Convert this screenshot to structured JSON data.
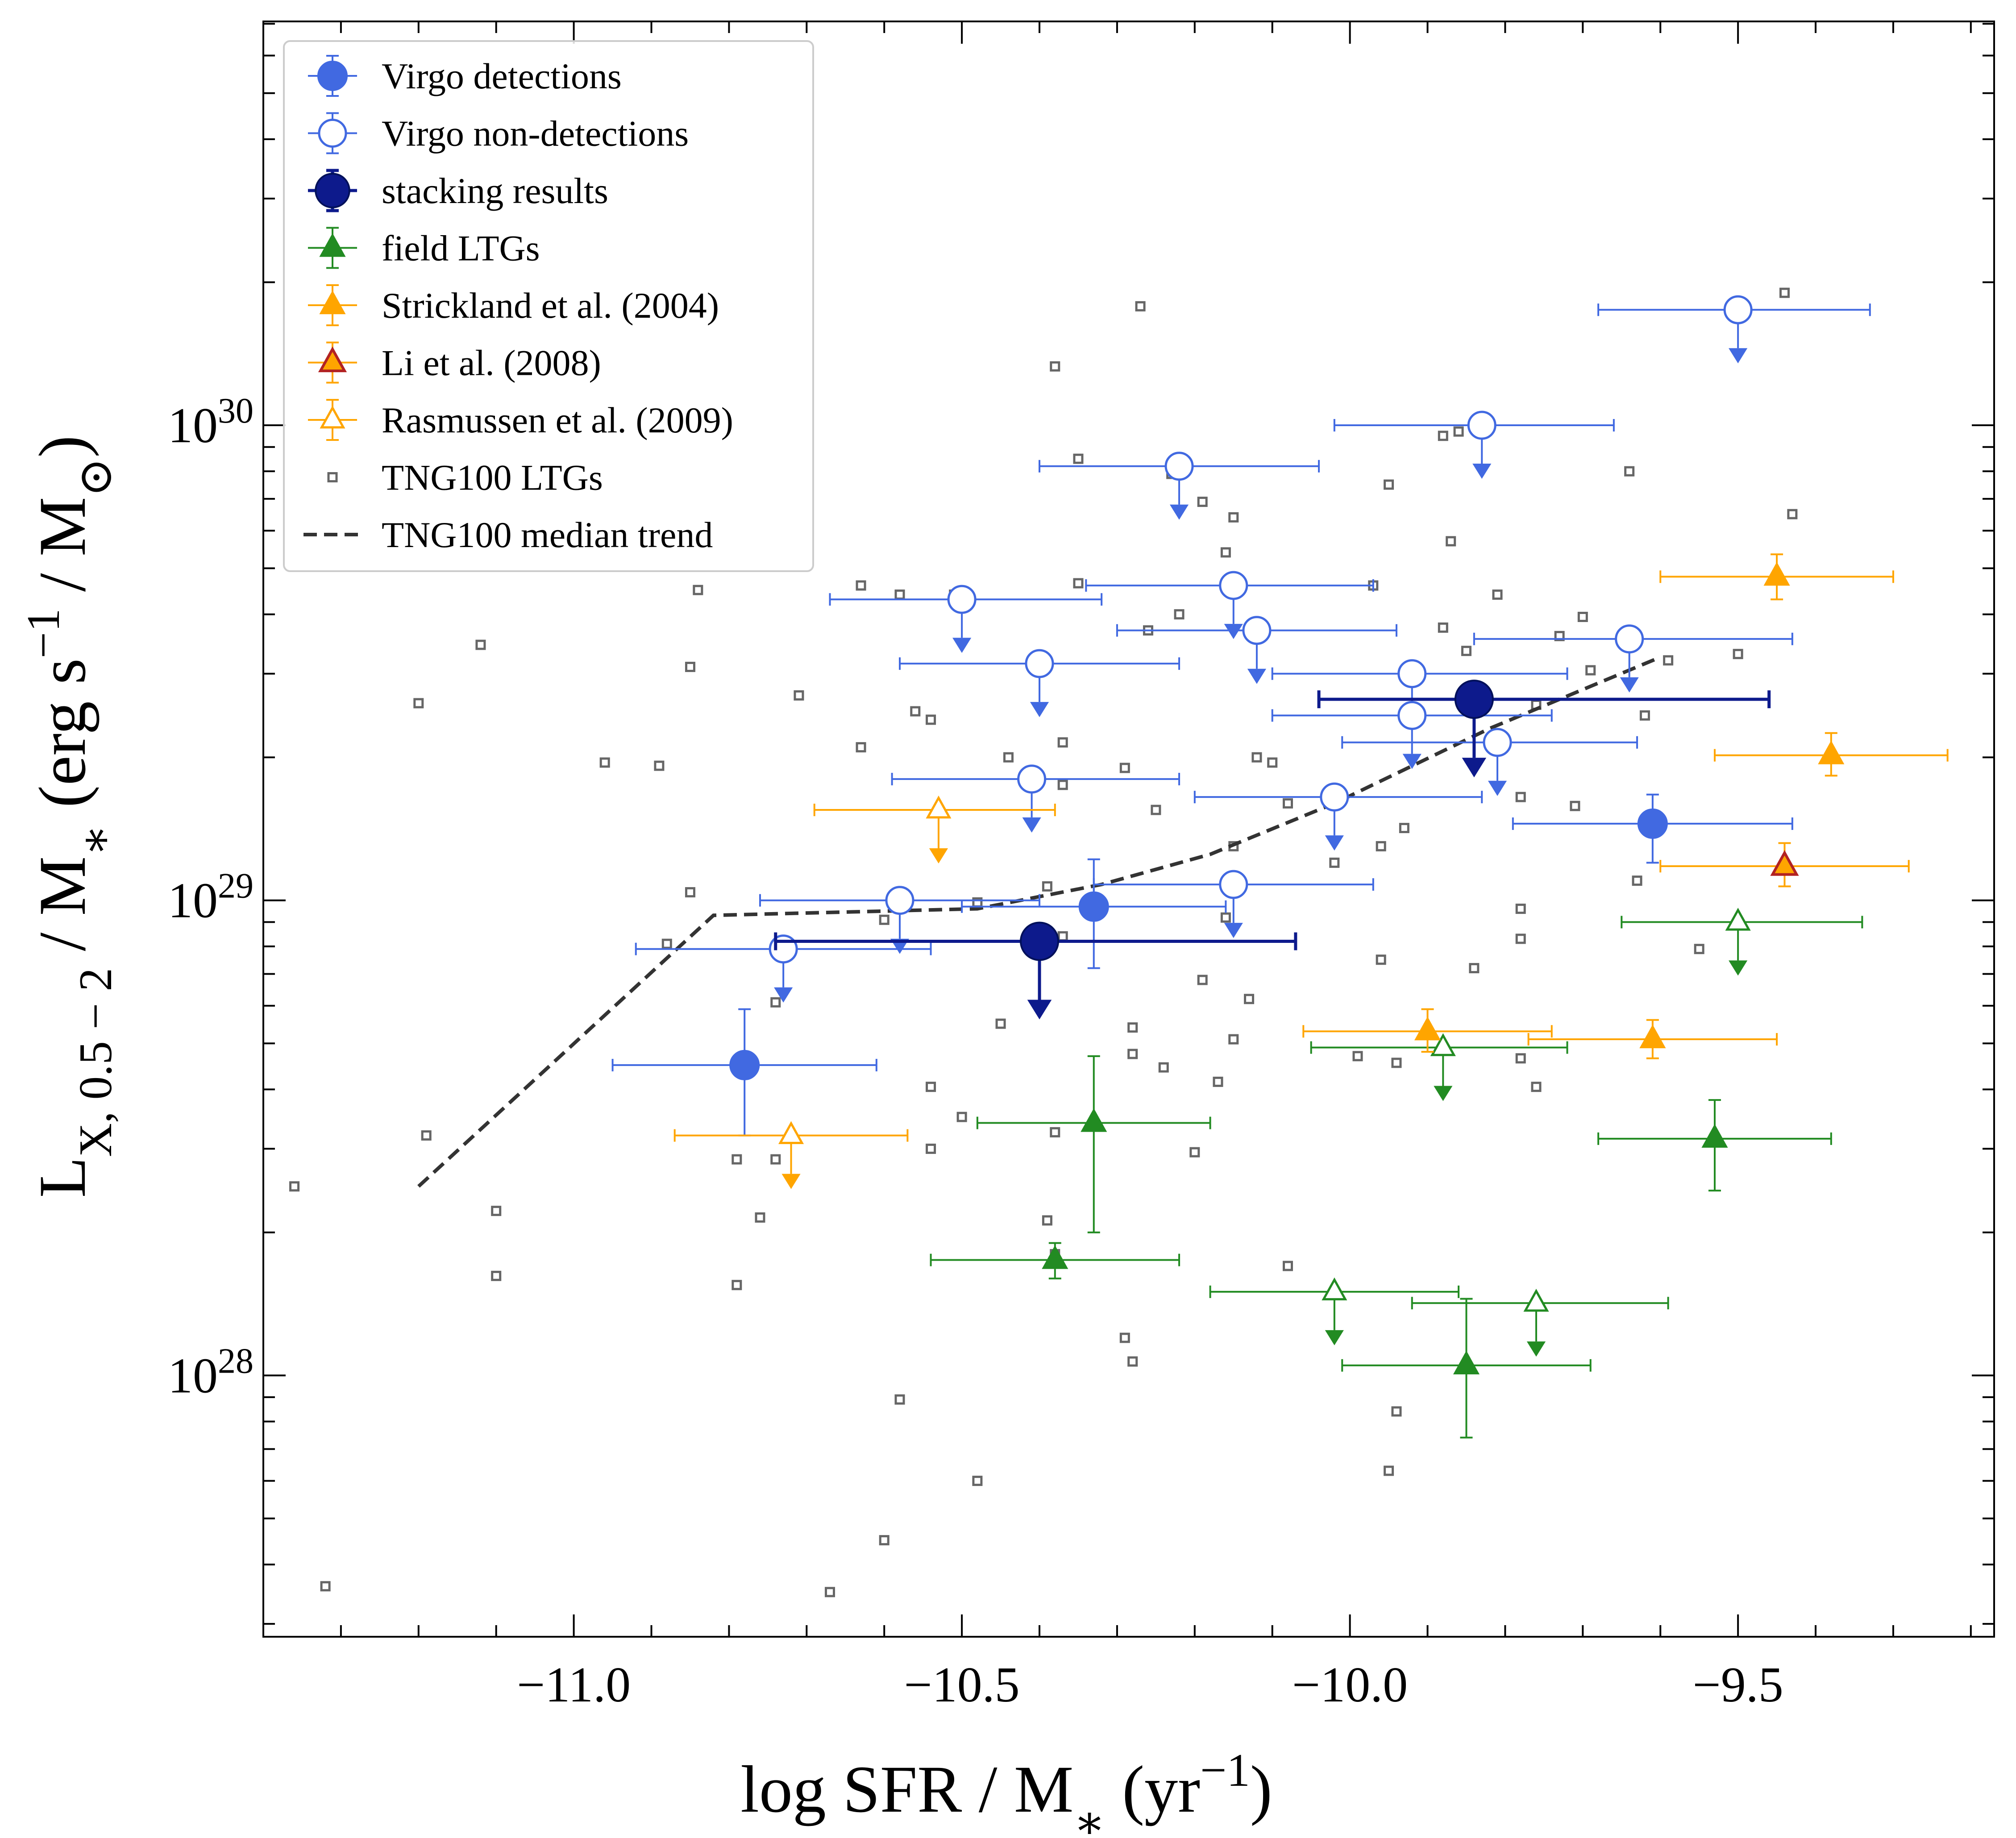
{
  "colors": {
    "virgo": "#4169e1",
    "stack": "#0d1a8c",
    "field": "#228b22",
    "strickland": "#ffa500",
    "li_edge": "#b22222",
    "tng": "#666666",
    "median": "#333333"
  },
  "chart_data": {
    "type": "scatter",
    "xlabel": "log SFR / M_* (yr^-1)",
    "ylabel": "L_X,0.5-2 / M_* (erg s^-1 / M_sun)",
    "xlim": [
      -11.4,
      -9.17
    ],
    "ylim_log10": [
      27.45,
      30.85
    ],
    "x_ticks": [
      -11.0,
      -10.5,
      -10.0,
      -9.5
    ],
    "x_tick_labels": [
      "−11.0",
      "−10.5",
      "−10.0",
      "−9.5"
    ],
    "y_ticks_log10": [
      28,
      29,
      30
    ],
    "y_tick_labels": [
      "10",
      "10",
      "10"
    ],
    "y_tick_exponents": [
      "28",
      "29",
      "30"
    ],
    "series": [
      {
        "name": "Virgo detections",
        "style": "virgo_det",
        "points": [
          {
            "x": -10.78,
            "y": 4.5e+28,
            "xerr": 0.17,
            "yhi": 5.9e+28,
            "ylo": 3.2e+28
          },
          {
            "x": -10.33,
            "y": 9.7e+28,
            "xerr": 0.17,
            "yhi": 1.22e+29,
            "ylo": 7.2e+28
          },
          {
            "x": -9.61,
            "y": 1.45e+29,
            "xerr": 0.18,
            "yhi": 1.67e+29,
            "ylo": 1.2e+29
          }
        ]
      },
      {
        "name": "Virgo non-detections",
        "style": "virgo_ul",
        "points": [
          {
            "x": -9.5,
            "y": 1.75e+30,
            "xlo": -9.68,
            "xhi": -9.33
          },
          {
            "x": -9.83,
            "y": 1e+30,
            "xlo": -10.02,
            "xhi": -9.66
          },
          {
            "x": -10.22,
            "y": 8.2e+29,
            "xlo": -10.4,
            "xhi": -10.04
          },
          {
            "x": -10.5,
            "y": 4.3e+29,
            "xlo": -10.67,
            "xhi": -10.32
          },
          {
            "x": -10.15,
            "y": 4.6e+29,
            "xlo": -10.34,
            "xhi": -9.97
          },
          {
            "x": -10.12,
            "y": 3.7e+29,
            "xlo": -10.3,
            "xhi": -9.94
          },
          {
            "x": -10.4,
            "y": 3.15e+29,
            "xlo": -10.58,
            "xhi": -10.22
          },
          {
            "x": -9.92,
            "y": 3e+29,
            "xlo": -10.1,
            "xhi": -9.72
          },
          {
            "x": -9.64,
            "y": 3.55e+29,
            "xlo": -9.84,
            "xhi": -9.43
          },
          {
            "x": -9.92,
            "y": 2.45e+29,
            "xlo": -10.1,
            "xhi": -9.74
          },
          {
            "x": -9.81,
            "y": 2.15e+29,
            "xlo": -10.01,
            "xhi": -9.63
          },
          {
            "x": -10.41,
            "y": 1.8e+29,
            "xlo": -10.59,
            "xhi": -10.22
          },
          {
            "x": -10.02,
            "y": 1.65e+29,
            "xlo": -10.2,
            "xhi": -9.83
          },
          {
            "x": -10.15,
            "y": 1.08e+29,
            "xlo": -10.33,
            "xhi": -9.97
          },
          {
            "x": -10.58,
            "y": 1e+29,
            "xlo": -10.76,
            "xhi": -10.4
          },
          {
            "x": -10.73,
            "y": 7.9e+28,
            "xlo": -10.92,
            "xhi": -10.54
          }
        ]
      },
      {
        "name": "stacking results",
        "style": "stack_ul",
        "points": [
          {
            "x": -9.84,
            "y": 2.65e+29,
            "xlo": -10.04,
            "xhi": -9.46
          },
          {
            "x": -10.4,
            "y": 8.2e+28,
            "xlo": -10.74,
            "xhi": -10.07
          }
        ]
      },
      {
        "name": "field LTGs",
        "style": "field_det",
        "points": [
          {
            "x": -10.33,
            "y": 3.4e+28,
            "xerr": 0.15,
            "yhi": 4.7e+28,
            "ylo": 2e+28
          },
          {
            "x": -9.53,
            "y": 3.15e+28,
            "xerr": 0.15,
            "yhi": 3.8e+28,
            "ylo": 2.45e+28
          },
          {
            "x": -10.38,
            "y": 1.75e+28,
            "xerr": 0.16,
            "yhi": 1.9e+28,
            "ylo": 1.6e+28
          },
          {
            "x": -9.85,
            "y": 1.05e+28,
            "xerr": 0.16,
            "yhi": 1.45e+28,
            "ylo": 7.4e+27
          }
        ]
      },
      {
        "name": "field LTGs (upper limits)",
        "style": "field_ul",
        "points": [
          {
            "x": -9.5,
            "y": 9e+28,
            "xlo": -9.65,
            "xhi": -9.34
          },
          {
            "x": -9.88,
            "y": 4.9e+28,
            "xlo": -10.05,
            "xhi": -9.72
          },
          {
            "x": -10.02,
            "y": 1.5e+28,
            "xlo": -10.18,
            "xhi": -9.86
          },
          {
            "x": -9.76,
            "y": 1.42e+28,
            "xlo": -9.92,
            "xhi": -9.59
          }
        ]
      },
      {
        "name": "Strickland et al. (2004)",
        "style": "strickland",
        "points": [
          {
            "x": -9.45,
            "y": 4.8e+29,
            "xerr": 0.15,
            "yhi": 5.35e+29,
            "ylo": 4.3e+29
          },
          {
            "x": -9.38,
            "y": 2.02e+29,
            "xerr": 0.15,
            "yhi": 2.25e+29,
            "ylo": 1.83e+29
          },
          {
            "x": -9.9,
            "y": 5.3e+28,
            "xerr": 0.16,
            "yhi": 5.9e+28,
            "ylo": 4.8e+28
          },
          {
            "x": -9.61,
            "y": 5.1e+28,
            "xerr": 0.16,
            "yhi": 5.6e+28,
            "ylo": 4.65e+28
          }
        ]
      },
      {
        "name": "Li et al. (2008)",
        "style": "li",
        "points": [
          {
            "x": -9.44,
            "y": 1.18e+29,
            "xerr": 0.16,
            "yhi": 1.32e+29,
            "ylo": 1.07e+29
          }
        ]
      },
      {
        "name": "Rasmussen et al. (2009)",
        "style": "rasmussen",
        "points": [
          {
            "x": -10.53,
            "y": 1.55e+29,
            "xlo": -10.69,
            "xhi": -10.38
          },
          {
            "x": -10.72,
            "y": 3.2e+28,
            "xlo": -10.87,
            "xhi": -10.57
          }
        ]
      },
      {
        "name": "TNG100 LTGs",
        "style": "tng",
        "points": [
          {
            "x": -9.44,
            "y": 1.9e+30
          },
          {
            "x": -10.27,
            "y": 1.78e+30
          },
          {
            "x": -10.38,
            "y": 1.33e+30
          },
          {
            "x": -9.86,
            "y": 9.7e+29
          },
          {
            "x": -9.88,
            "y": 9.5e+29
          },
          {
            "x": -10.35,
            "y": 8.5e+29
          },
          {
            "x": -10.23,
            "y": 7.9e+29
          },
          {
            "x": -9.64,
            "y": 8e+29
          },
          {
            "x": -9.95,
            "y": 7.5e+29
          },
          {
            "x": -10.19,
            "y": 6.9e+29
          },
          {
            "x": -10.15,
            "y": 6.4e+29
          },
          {
            "x": -9.43,
            "y": 6.5e+29
          },
          {
            "x": -9.87,
            "y": 5.7e+29
          },
          {
            "x": -10.16,
            "y": 5.4e+29
          },
          {
            "x": -10.35,
            "y": 4.65e+29
          },
          {
            "x": -9.97,
            "y": 4.6e+29
          },
          {
            "x": -10.63,
            "y": 4.6e+29
          },
          {
            "x": -10.58,
            "y": 4.4e+29
          },
          {
            "x": -10.84,
            "y": 4.5e+29
          },
          {
            "x": -10.51,
            "y": 4.4e+29
          },
          {
            "x": -9.81,
            "y": 4.4e+29
          },
          {
            "x": -10.22,
            "y": 4e+29
          },
          {
            "x": -9.7,
            "y": 3.95e+29
          },
          {
            "x": -9.88,
            "y": 3.75e+29
          },
          {
            "x": -10.26,
            "y": 3.7e+29
          },
          {
            "x": -9.73,
            "y": 3.6e+29
          },
          {
            "x": -11.12,
            "y": 3.45e+29
          },
          {
            "x": -9.85,
            "y": 3.35e+29
          },
          {
            "x": -9.5,
            "y": 3.3e+29
          },
          {
            "x": -9.59,
            "y": 3.2e+29
          },
          {
            "x": -10.85,
            "y": 3.1e+29
          },
          {
            "x": -9.69,
            "y": 3.05e+29
          },
          {
            "x": -10.71,
            "y": 2.7e+29
          },
          {
            "x": -11.2,
            "y": 2.6e+29
          },
          {
            "x": -9.76,
            "y": 2.58e+29
          },
          {
            "x": -9.84,
            "y": 2.57e+29
          },
          {
            "x": -10.56,
            "y": 2.5e+29
          },
          {
            "x": -10.54,
            "y": 2.4e+29
          },
          {
            "x": -9.62,
            "y": 2.45e+29
          },
          {
            "x": -10.37,
            "y": 2.15e+29
          },
          {
            "x": -10.63,
            "y": 2.1e+29
          },
          {
            "x": -10.12,
            "y": 2e+29
          },
          {
            "x": -10.44,
            "y": 2e+29
          },
          {
            "x": -10.96,
            "y": 1.95e+29
          },
          {
            "x": -10.89,
            "y": 1.92e+29
          },
          {
            "x": -10.1,
            "y": 1.95e+29
          },
          {
            "x": -10.29,
            "y": 1.9e+29
          },
          {
            "x": -10.37,
            "y": 1.75e+29
          },
          {
            "x": -9.78,
            "y": 1.65e+29
          },
          {
            "x": -9.71,
            "y": 1.58e+29
          },
          {
            "x": -10.25,
            "y": 1.55e+29
          },
          {
            "x": -10.08,
            "y": 1.6e+29
          },
          {
            "x": -9.93,
            "y": 1.42e+29
          },
          {
            "x": -10.15,
            "y": 1.3e+29
          },
          {
            "x": -9.96,
            "y": 1.3e+29
          },
          {
            "x": -10.02,
            "y": 1.2e+29
          },
          {
            "x": -9.63,
            "y": 1.1e+29
          },
          {
            "x": -10.39,
            "y": 1.07e+29
          },
          {
            "x": -10.85,
            "y": 1.04e+29
          },
          {
            "x": -10.48,
            "y": 9.9e+28
          },
          {
            "x": -9.78,
            "y": 9.6e+28
          },
          {
            "x": -10.16,
            "y": 9.2e+28
          },
          {
            "x": -10.6,
            "y": 9.1e+28
          },
          {
            "x": -10.88,
            "y": 8.1e+28
          },
          {
            "x": -10.37,
            "y": 8.4e+28
          },
          {
            "x": -9.78,
            "y": 8.3e+28
          },
          {
            "x": -9.55,
            "y": 7.9e+28
          },
          {
            "x": -9.96,
            "y": 7.5e+28
          },
          {
            "x": -9.84,
            "y": 7.2e+28
          },
          {
            "x": -10.19,
            "y": 6.8e+28
          },
          {
            "x": -10.13,
            "y": 6.2e+28
          },
          {
            "x": -10.74,
            "y": 6.1e+28
          },
          {
            "x": -10.45,
            "y": 5.5e+28
          },
          {
            "x": -10.28,
            "y": 5.4e+28
          },
          {
            "x": -10.15,
            "y": 5.1e+28
          },
          {
            "x": -10.28,
            "y": 4.75e+28
          },
          {
            "x": -9.99,
            "y": 4.7e+28
          },
          {
            "x": -9.78,
            "y": 4.65e+28
          },
          {
            "x": -9.94,
            "y": 4.55e+28
          },
          {
            "x": -10.24,
            "y": 4.45e+28
          },
          {
            "x": -10.17,
            "y": 4.15e+28
          },
          {
            "x": -10.54,
            "y": 4.05e+28
          },
          {
            "x": -9.76,
            "y": 4.05e+28
          },
          {
            "x": -10.5,
            "y": 3.5e+28
          },
          {
            "x": -10.38,
            "y": 3.25e+28
          },
          {
            "x": -11.19,
            "y": 3.2e+28
          },
          {
            "x": -10.54,
            "y": 3e+28
          },
          {
            "x": -10.2,
            "y": 2.95e+28
          },
          {
            "x": -10.79,
            "y": 2.85e+28
          },
          {
            "x": -10.74,
            "y": 2.85e+28
          },
          {
            "x": -11.1,
            "y": 2.22e+28
          },
          {
            "x": -10.76,
            "y": 2.15e+28
          },
          {
            "x": -10.39,
            "y": 2.12e+28
          },
          {
            "x": -11.36,
            "y": 2.5e+28
          },
          {
            "x": -10.38,
            "y": 1.8e+28
          },
          {
            "x": -10.08,
            "y": 1.7e+28
          },
          {
            "x": -11.1,
            "y": 1.62e+28
          },
          {
            "x": -10.79,
            "y": 1.55e+28
          },
          {
            "x": -10.29,
            "y": 1.2e+28
          },
          {
            "x": -10.28,
            "y": 1.07e+28
          },
          {
            "x": -9.94,
            "y": 8.4e+27
          },
          {
            "x": -10.58,
            "y": 8.9e+27
          },
          {
            "x": -9.95,
            "y": 6.3e+27
          },
          {
            "x": -10.48,
            "y": 6e+27
          },
          {
            "x": -10.6,
            "y": 4.5e+27
          },
          {
            "x": -11.32,
            "y": 3.6e+27
          },
          {
            "x": -10.67,
            "y": 3.5e+27
          }
        ]
      },
      {
        "name": "TNG100 median trend",
        "style": "median",
        "points": [
          {
            "x": -11.2,
            "y": 2.5e+28
          },
          {
            "x": -10.82,
            "y": 9.3e+28
          },
          {
            "x": -10.48,
            "y": 9.6e+28
          },
          {
            "x": -10.32,
            "y": 1.08e+29
          },
          {
            "x": -10.18,
            "y": 1.25e+29
          },
          {
            "x": -10.02,
            "y": 1.6e+29
          },
          {
            "x": -9.82,
            "y": 2.3e+29
          },
          {
            "x": -9.6,
            "y": 3.25e+29
          }
        ]
      }
    ],
    "legend": {
      "location": "upper left",
      "entries": [
        {
          "style": "virgo_det",
          "label": "Virgo detections"
        },
        {
          "style": "virgo_ul",
          "label": "Virgo non-detections"
        },
        {
          "style": "stack_ul",
          "label": "stacking results"
        },
        {
          "style": "field_det",
          "label": "field LTGs"
        },
        {
          "style": "strickland",
          "label": "Strickland et al. (2004)"
        },
        {
          "style": "li",
          "label": "Li et al. (2008)"
        },
        {
          "style": "rasmussen",
          "label": "Rasmussen et al. (2009)"
        },
        {
          "style": "tng",
          "label": "TNG100 LTGs"
        },
        {
          "style": "median",
          "label": "TNG100 median trend"
        }
      ]
    }
  }
}
